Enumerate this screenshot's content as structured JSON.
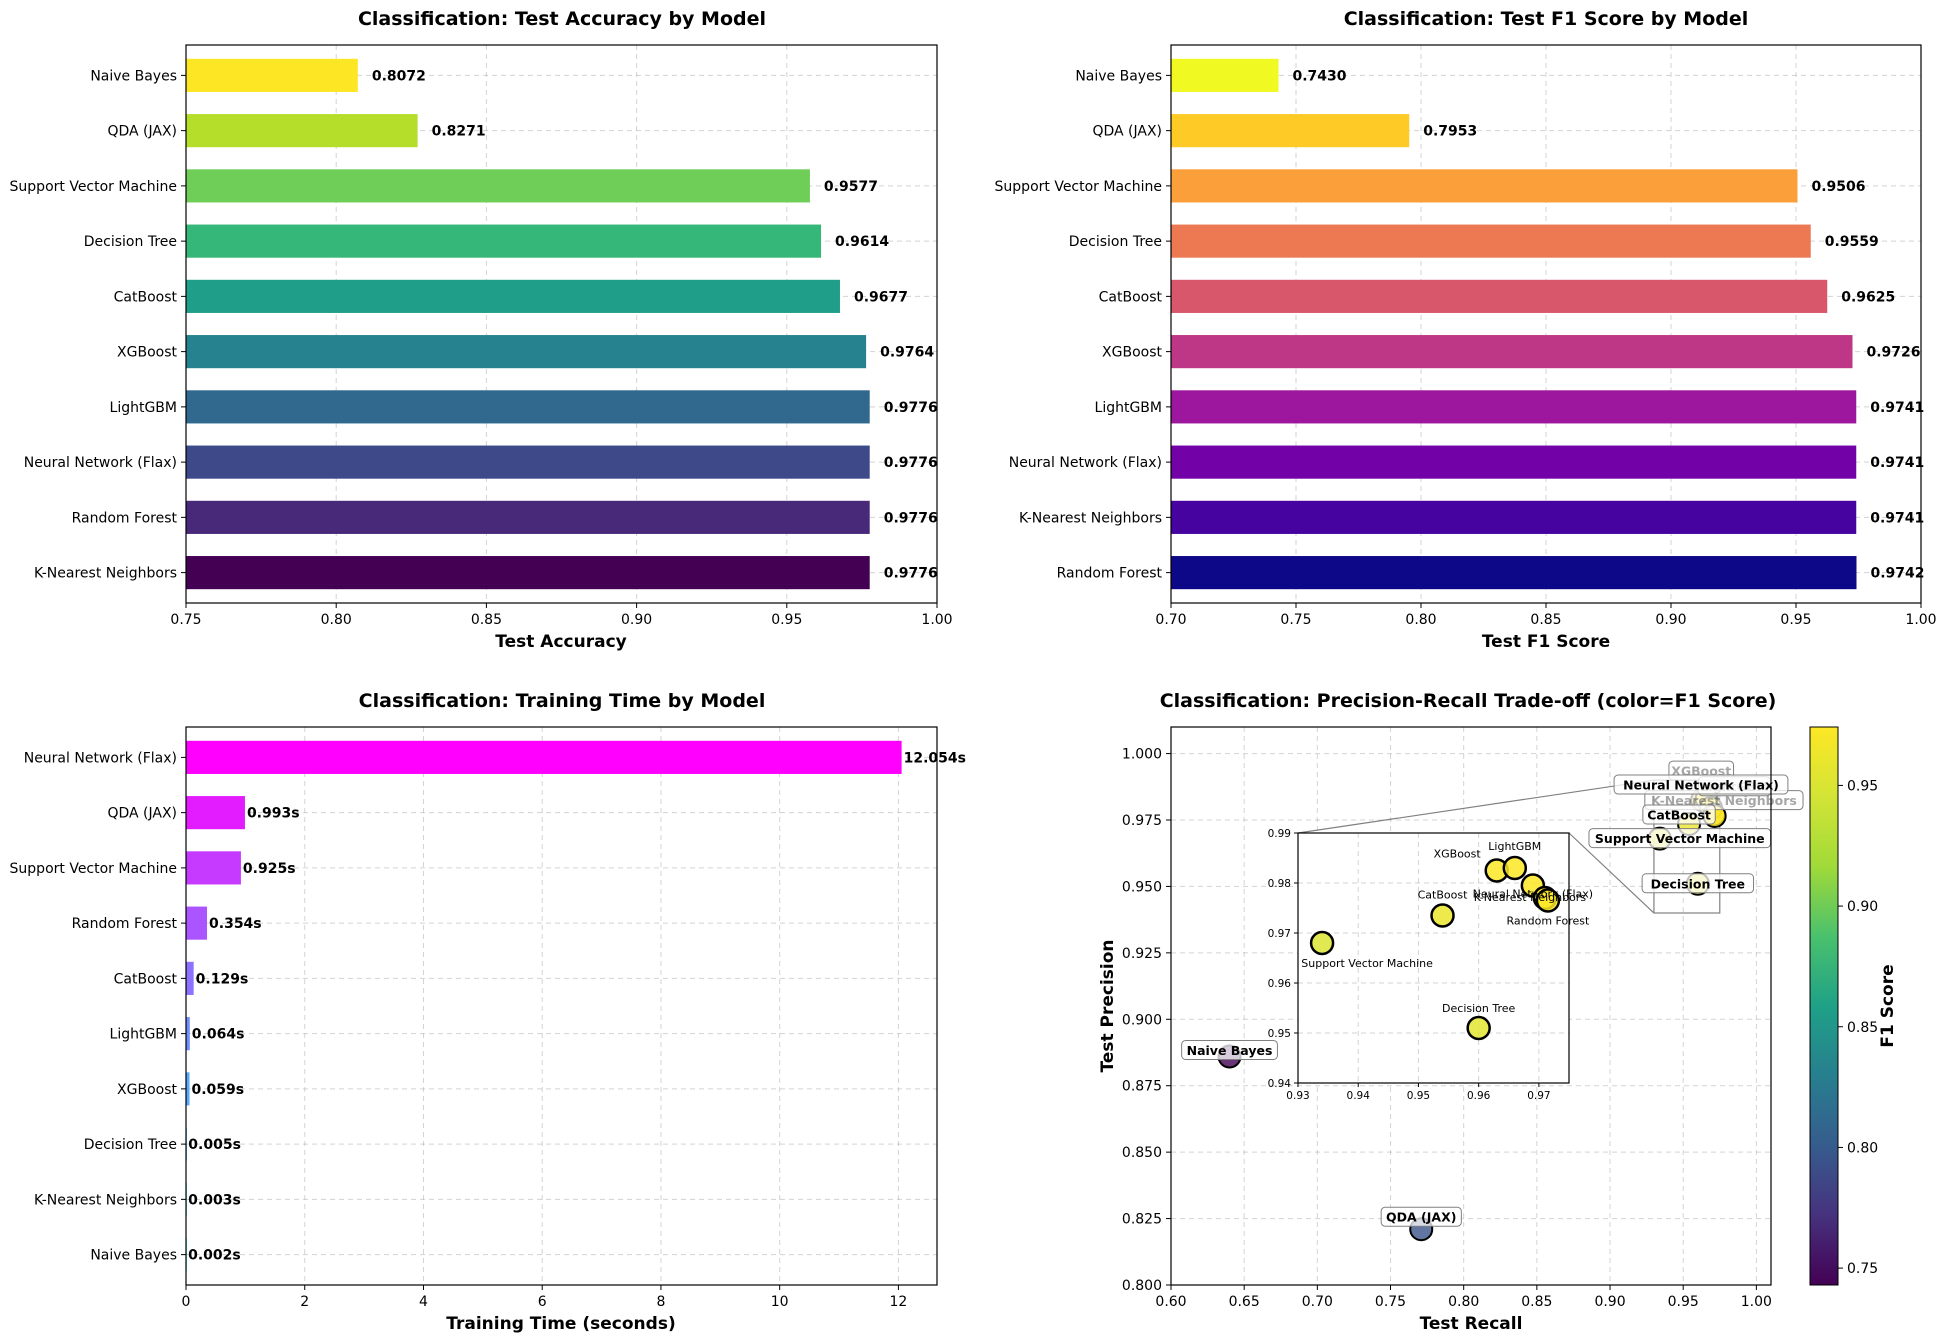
{
  "chart_data": [
    {
      "type": "bar",
      "orientation": "horizontal",
      "title": "Classification: Test Accuracy by Model",
      "xlabel": "Test Accuracy",
      "xlim": [
        0.75,
        1.0
      ],
      "xticks": [
        "0.75",
        "0.80",
        "0.85",
        "0.90",
        "0.95",
        "1.00"
      ],
      "grid": true,
      "colormap": "viridis",
      "categories": [
        "Naive Bayes",
        "QDA (JAX)",
        "Support Vector Machine",
        "Decision Tree",
        "CatBoost",
        "XGBoost",
        "LightGBM",
        "Neural Network (Flax)",
        "Random Forest",
        "K-Nearest Neighbors"
      ],
      "values": [
        0.8072,
        0.8271,
        0.9577,
        0.9614,
        0.9677,
        0.9764,
        0.9776,
        0.9776,
        0.9776,
        0.9776
      ],
      "value_labels": [
        "0.8072",
        "0.8271",
        "0.9577",
        "0.9614",
        "0.9677",
        "0.9764",
        "0.9776",
        "0.9776",
        "0.9776",
        "0.9776"
      ],
      "colors": [
        "#fde725",
        "#b5de2b",
        "#6ece58",
        "#35b779",
        "#1f9e89",
        "#26828e",
        "#31688e",
        "#3e4989",
        "#482878",
        "#440154"
      ]
    },
    {
      "type": "bar",
      "orientation": "horizontal",
      "title": "Classification: Test F1 Score by Model",
      "xlabel": "Test F1 Score",
      "xlim": [
        0.7,
        1.0
      ],
      "xticks": [
        "0.70",
        "0.75",
        "0.80",
        "0.85",
        "0.90",
        "0.95",
        "1.00"
      ],
      "grid": true,
      "colormap": "plasma",
      "categories": [
        "Naive Bayes",
        "QDA (JAX)",
        "Support Vector Machine",
        "Decision Tree",
        "CatBoost",
        "XGBoost",
        "LightGBM",
        "Neural Network (Flax)",
        "K-Nearest Neighbors",
        "Random Forest"
      ],
      "values": [
        0.743,
        0.7953,
        0.9506,
        0.9559,
        0.9625,
        0.9726,
        0.9741,
        0.9741,
        0.9741,
        0.9742
      ],
      "value_labels": [
        "0.7430",
        "0.7953",
        "0.9506",
        "0.9559",
        "0.9625",
        "0.9726",
        "0.9741",
        "0.9741",
        "0.9741",
        "0.9742"
      ],
      "colors": [
        "#f0f921",
        "#fdca26",
        "#fb9f3a",
        "#ed7953",
        "#d8576b",
        "#bd3786",
        "#9c179e",
        "#7201a8",
        "#46039f",
        "#0d0887"
      ]
    },
    {
      "type": "bar",
      "orientation": "horizontal",
      "title": "Classification: Training Time by Model",
      "xlabel": "Training Time (seconds)",
      "xlim": [
        0,
        12.65
      ],
      "xticks": [
        "0",
        "2",
        "4",
        "6",
        "8",
        "10",
        "12"
      ],
      "grid": true,
      "colormap": "cool",
      "categories": [
        "Neural Network (Flax)",
        "QDA (JAX)",
        "Support Vector Machine",
        "Random Forest",
        "CatBoost",
        "LightGBM",
        "XGBoost",
        "Decision Tree",
        "K-Nearest Neighbors",
        "Naive Bayes"
      ],
      "values": [
        12.054,
        0.993,
        0.925,
        0.354,
        0.129,
        0.064,
        0.059,
        0.005,
        0.003,
        0.002
      ],
      "value_labels": [
        "12.054s",
        "0.993s",
        "0.925s",
        "0.354s",
        "0.129s",
        "0.064s",
        "0.059s",
        "0.005s",
        "0.003s",
        "0.002s"
      ],
      "colors": [
        "#ff00ff",
        "#e31cff",
        "#c639ff",
        "#aa55ff",
        "#8e71ff",
        "#718eff",
        "#55aaff",
        "#39c6ff",
        "#1ce3ff",
        "#00ffff"
      ]
    },
    {
      "type": "scatter",
      "title": "Classification: Precision-Recall Trade-off (color=F1 Score)",
      "xlabel": "Test Recall",
      "ylabel": "Test Precision",
      "xlim": [
        0.6,
        1.01
      ],
      "ylim": [
        0.8,
        1.01
      ],
      "xticks": [
        "0.60",
        "0.65",
        "0.70",
        "0.75",
        "0.80",
        "0.85",
        "0.90",
        "0.95",
        "1.00"
      ],
      "yticks": [
        "0.800",
        "0.825",
        "0.850",
        "0.875",
        "0.900",
        "0.925",
        "0.950",
        "0.975",
        "1.000"
      ],
      "grid": true,
      "colormap": "viridis",
      "points": [
        {
          "name": "Naive Bayes",
          "x": 0.64,
          "y": 0.886,
          "f1": 0.743
        },
        {
          "name": "QDA (JAX)",
          "x": 0.771,
          "y": 0.821,
          "f1": 0.7953
        },
        {
          "name": "Support Vector Machine",
          "x": 0.934,
          "y": 0.968,
          "f1": 0.9506
        },
        {
          "name": "Decision Tree",
          "x": 0.96,
          "y": 0.951,
          "f1": 0.9559
        },
        {
          "name": "CatBoost",
          "x": 0.954,
          "y": 0.9735,
          "f1": 0.9625
        },
        {
          "name": "XGBoost",
          "x": 0.963,
          "y": 0.9825,
          "f1": 0.9726
        },
        {
          "name": "LightGBM",
          "x": 0.966,
          "y": 0.983,
          "f1": 0.9741
        },
        {
          "name": "Neural Network (Flax)",
          "x": 0.969,
          "y": 0.9795,
          "f1": 0.9741
        },
        {
          "name": "K-Nearest Neighbors",
          "x": 0.971,
          "y": 0.977,
          "f1": 0.9741
        },
        {
          "name": "Random Forest",
          "x": 0.9715,
          "y": 0.9765,
          "f1": 0.9742
        }
      ],
      "annotations_visible": [
        "Naive Bayes",
        "QDA (JAX)",
        "Support Vector Machine",
        "Decision Tree",
        "CatBoost",
        "Neural Network (Flax)"
      ],
      "inset": {
        "xlim": [
          0.93,
          0.975
        ],
        "ylim": [
          0.94,
          0.99
        ],
        "xticks": [
          "0.93",
          "0.94",
          "0.95",
          "0.96",
          "0.97"
        ],
        "yticks": [
          "0.94",
          "0.95",
          "0.96",
          "0.97",
          "0.98",
          "0.99"
        ],
        "labels": [
          "Support Vector Machine",
          "Decision Tree",
          "CatBoost",
          "XGBoost",
          "LightGBM",
          "Neural Network (Flax)",
          "K-Nearest Neighbors",
          "Random Forest"
        ]
      },
      "colorbar": {
        "label": "F1 Score",
        "range": [
          0.743,
          0.9742
        ],
        "ticks": [
          "0.75",
          "0.80",
          "0.85",
          "0.90",
          "0.95"
        ],
        "tick_values": [
          0.75,
          0.8,
          0.85,
          0.9,
          0.95
        ]
      }
    }
  ]
}
